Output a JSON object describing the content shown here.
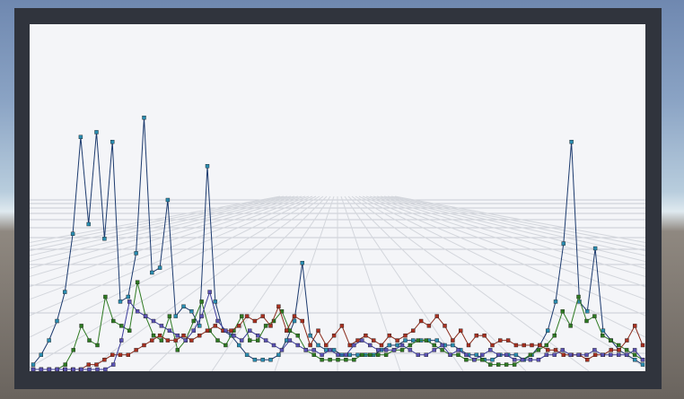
{
  "chart_data": {
    "type": "line",
    "view": "3d-perspective",
    "grid": true,
    "legend": "none",
    "title": "",
    "xlabel": "",
    "ylabel": "",
    "series": [
      {
        "color": "#1c3a6e",
        "marker_color": "#2a8cb0",
        "values": [
          1,
          3,
          6,
          10,
          16,
          28,
          48,
          30,
          49,
          27,
          47,
          14,
          15,
          24,
          52,
          20,
          21,
          35,
          11,
          13,
          12,
          9,
          42,
          14,
          8,
          7,
          5,
          3,
          2,
          2,
          2,
          3,
          6,
          10,
          22,
          7,
          5,
          4,
          4,
          3,
          3,
          3,
          3,
          3,
          4,
          5,
          5,
          6,
          6,
          6,
          6,
          6,
          5,
          5,
          4,
          3,
          3,
          2,
          2,
          3,
          3,
          3,
          2,
          3,
          5,
          8,
          14,
          26,
          47,
          14,
          12,
          25,
          8,
          6,
          4,
          3,
          2,
          1
        ]
      },
      {
        "color": "#2e7a22",
        "marker_color": "#2e7a22",
        "values": [
          0,
          0,
          0,
          0,
          1,
          4,
          9,
          6,
          5,
          15,
          10,
          9,
          8,
          18,
          11,
          7,
          6,
          11,
          4,
          6,
          10,
          14,
          8,
          6,
          5,
          8,
          11,
          6,
          6,
          9,
          10,
          12,
          8,
          7,
          4,
          3,
          2,
          2,
          2,
          2,
          2,
          3,
          3,
          3,
          3,
          4,
          4,
          5,
          6,
          6,
          5,
          4,
          3,
          3,
          2,
          2,
          2,
          1,
          1,
          1,
          1,
          2,
          3,
          4,
          5,
          7,
          12,
          9,
          15,
          10,
          11,
          7,
          6,
          5,
          4,
          3,
          2
        ]
      },
      {
        "color": "#8a2a1a",
        "marker_color": "#a83020",
        "values": [
          0,
          0,
          0,
          0,
          0,
          0,
          0,
          1,
          1,
          2,
          3,
          3,
          3,
          4,
          5,
          6,
          7,
          6,
          6,
          7,
          6,
          7,
          8,
          9,
          8,
          8,
          9,
          11,
          10,
          11,
          9,
          13,
          8,
          11,
          10,
          5,
          8,
          5,
          7,
          9,
          5,
          6,
          7,
          6,
          5,
          7,
          6,
          7,
          8,
          10,
          9,
          11,
          9,
          6,
          8,
          5,
          7,
          7,
          5,
          6,
          6,
          5,
          5,
          5,
          5,
          4,
          4,
          3,
          3,
          3,
          2,
          3,
          3,
          4,
          4,
          6,
          9,
          5
        ]
      },
      {
        "color": "#3c3c9c",
        "marker_color": "#5a52b4",
        "values": [
          0,
          0,
          0,
          0,
          0,
          0,
          0,
          0,
          0,
          0,
          1,
          6,
          14,
          12,
          11,
          10,
          9,
          8,
          7,
          6,
          8,
          11,
          16,
          10,
          8,
          7,
          6,
          8,
          7,
          6,
          5,
          4,
          6,
          5,
          4,
          4,
          3,
          4,
          3,
          3,
          5,
          6,
          5,
          4,
          4,
          4,
          5,
          4,
          3,
          3,
          4,
          5,
          3,
          4,
          3,
          2,
          3,
          4,
          3,
          3,
          2,
          2,
          2,
          2,
          3,
          3,
          4,
          3,
          3,
          3,
          4,
          3,
          3,
          3,
          3,
          4,
          2
        ]
      }
    ]
  }
}
